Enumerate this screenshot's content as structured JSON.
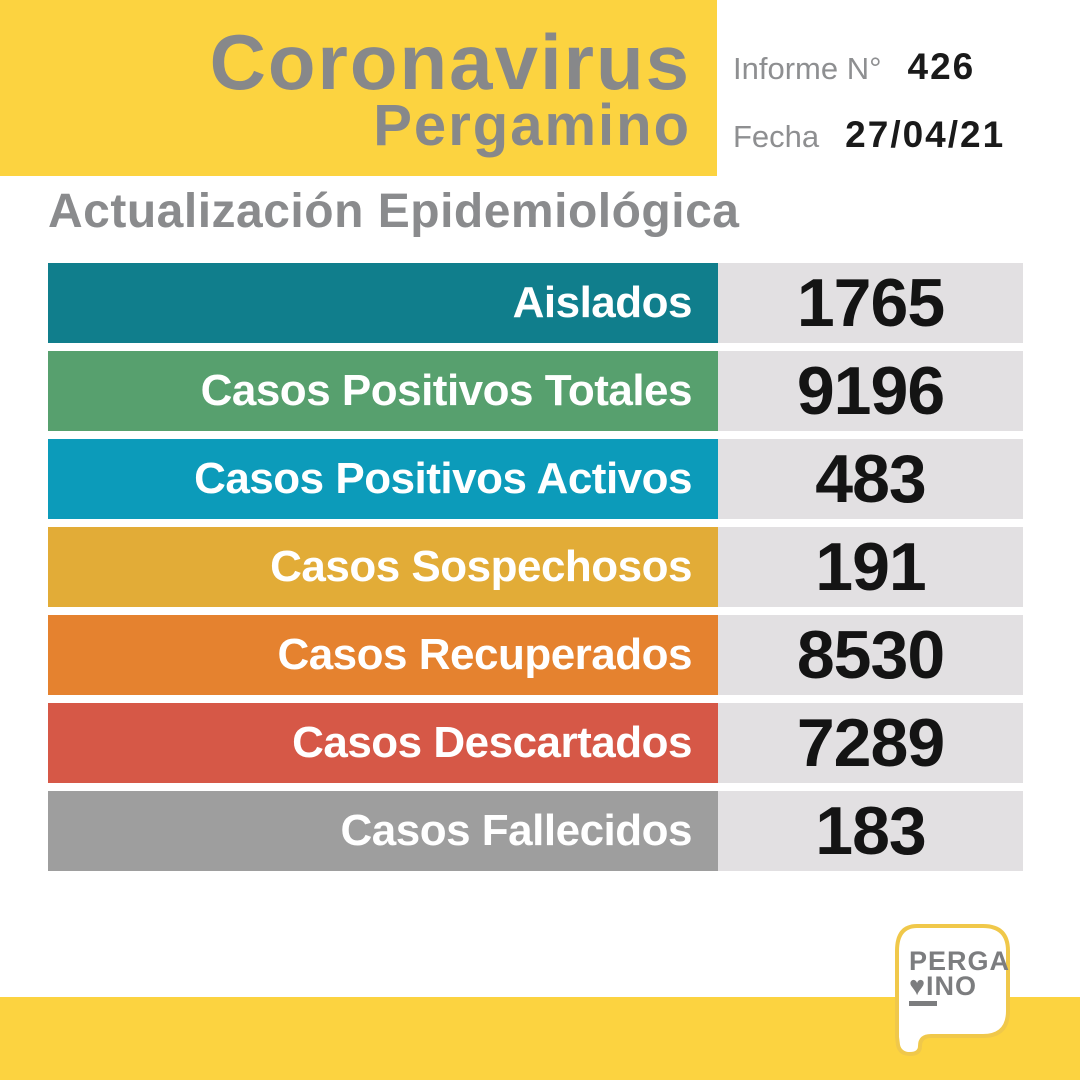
{
  "meta": {
    "accent_yellow": "#FCD340",
    "title_gray": "#87888A",
    "background": "#FFFFFF"
  },
  "header": {
    "title": "Coronavirus",
    "subtitle": "Pergamino",
    "report_label": "Informe N°",
    "report_number": "426",
    "date_label": "Fecha",
    "date_value": "27/04/21"
  },
  "section": {
    "heading": "Actualización Epidemiológica"
  },
  "chart_data": {
    "type": "table",
    "title": "Actualización Epidemiológica",
    "rows": [
      {
        "label": "Aislados",
        "value": 1765,
        "color": "#107E8C"
      },
      {
        "label": "Casos Positivos Totales",
        "value": 9196,
        "color": "#57A06E"
      },
      {
        "label": "Casos Positivos Activos",
        "value": 483,
        "color": "#0C9BBA"
      },
      {
        "label": "Casos Sospechosos",
        "value": 191,
        "color": "#E2AC37"
      },
      {
        "label": "Casos Recuperados",
        "value": 8530,
        "color": "#E5822F"
      },
      {
        "label": "Casos Descartados",
        "value": 7289,
        "color": "#D65847"
      },
      {
        "label": "Casos Fallecidos",
        "value": 183,
        "color": "#9E9E9E"
      }
    ],
    "value_box_color": "#E2E0E2",
    "label_text_color": "#FFFFFF",
    "value_text_color": "#141414"
  },
  "logo": {
    "line1": "PERGA",
    "heart": "♥",
    "line2": "INO",
    "text_color": "#7C7D7F",
    "border_color": "#F0C84A"
  }
}
